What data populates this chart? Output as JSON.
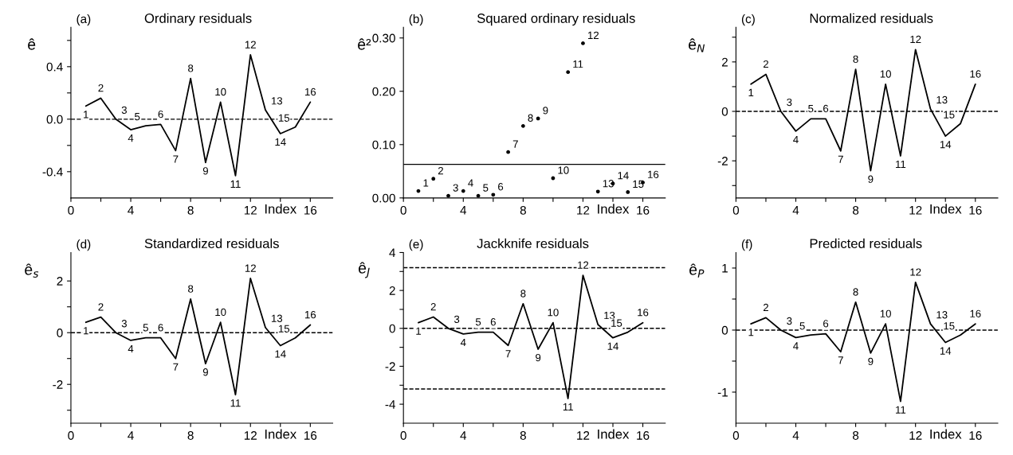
{
  "chart_data": [
    {
      "type": "line",
      "title": "Ordinary residuals",
      "xlabel": "Index",
      "ylabel": "ê",
      "x": [
        1,
        2,
        3,
        4,
        5,
        6,
        7,
        8,
        9,
        10,
        11,
        12,
        13,
        14,
        15,
        16
      ],
      "xlim": [
        0,
        17.5
      ],
      "xticks": [
        0,
        {
          "value": 2,
          "label": null
        },
        4,
        {
          "value": 6,
          "label": null
        },
        8,
        {
          "value": 10,
          "label": null
        },
        12,
        {
          "value": 14,
          "label": null
        },
        16
      ],
      "ylim": [
        -0.6,
        0.7
      ],
      "yticks": [
        {
          "value": -0.4,
          "label": "-0.4"
        },
        {
          "value": -0.2,
          "label": null
        },
        {
          "value": 0,
          "label": "0.0"
        },
        {
          "value": 0.2,
          "label": null
        },
        {
          "value": 0.4,
          "label": "0.4"
        },
        {
          "value": 0.6,
          "label": null
        }
      ],
      "marker": "none",
      "line_style": "solid",
      "grid": false,
      "ref_lines": [
        {
          "axis": "y",
          "value": 0,
          "line_style": "dashed"
        }
      ],
      "series": [
        {
          "color": "#000000",
          "values": [
            0.1,
            0.16,
            0.0,
            -0.08,
            -0.05,
            -0.04,
            -0.24,
            0.31,
            -0.33,
            0.13,
            -0.43,
            0.49,
            0.07,
            -0.11,
            -0.06,
            0.13
          ]
        }
      ],
      "annotations": [
        "(a)",
        {
          "text": "1",
          "x": 1,
          "y": 0.1
        },
        {
          "text": "2",
          "x": 2,
          "y": 0.16
        },
        {
          "text": "3",
          "x": 3,
          "y": 0.0
        },
        {
          "text": "4",
          "x": 4,
          "y": -0.08
        },
        {
          "text": "5",
          "x": 5,
          "y": -0.05
        },
        {
          "text": "6",
          "x": 6,
          "y": -0.04
        },
        {
          "text": "7",
          "x": 7,
          "y": -0.24
        },
        {
          "text": "8",
          "x": 8,
          "y": 0.31
        },
        {
          "text": "9",
          "x": 9,
          "y": -0.33
        },
        {
          "text": "10",
          "x": 10,
          "y": 0.13
        },
        {
          "text": "11",
          "x": 11,
          "y": -0.43
        },
        {
          "text": "12",
          "x": 12,
          "y": 0.49
        },
        {
          "text": "13",
          "x": 13,
          "y": 0.07
        },
        {
          "text": "14",
          "x": 14,
          "y": -0.11
        },
        {
          "text": "15",
          "x": 15,
          "y": -0.06
        },
        {
          "text": "16",
          "x": 16,
          "y": 0.13
        }
      ]
    },
    {
      "type": "scatter",
      "title": "Squared ordinary residuals",
      "xlabel": "Index",
      "ylabel": "ê²",
      "x": [
        1,
        2,
        3,
        4,
        5,
        6,
        7,
        8,
        9,
        10,
        11,
        12,
        13,
        14,
        15,
        16
      ],
      "xlim": [
        0,
        17.5
      ],
      "xticks": [
        0,
        {
          "value": 2,
          "label": null
        },
        4,
        {
          "value": 6,
          "label": null
        },
        8,
        {
          "value": 10,
          "label": null
        },
        12,
        {
          "value": 14,
          "label": null
        },
        16
      ],
      "ylim": [
        0,
        0.32
      ],
      "yticks": [
        {
          "value": 0,
          "label": "0.00"
        },
        {
          "value": 0.1,
          "label": "0.10"
        },
        {
          "value": 0.2,
          "label": "0.20"
        },
        {
          "value": 0.3,
          "label": "0.30"
        }
      ],
      "marker": "circle",
      "grid": false,
      "ref_lines": [
        {
          "axis": "y",
          "value": 0.063,
          "line_style": "solid"
        }
      ],
      "series": [
        {
          "color": "#000000",
          "values": [
            0.013,
            0.036,
            0.004,
            0.013,
            0.004,
            0.006,
            0.086,
            0.135,
            0.149,
            0.037,
            0.236,
            0.29,
            0.012,
            0.027,
            0.011,
            0.029
          ]
        }
      ],
      "annotations": [
        "(b)",
        {
          "text": "1",
          "x": 1,
          "y": 0.013
        },
        {
          "text": "2",
          "x": 2,
          "y": 0.036
        },
        {
          "text": "3",
          "x": 3,
          "y": 0.004
        },
        {
          "text": "4",
          "x": 4,
          "y": 0.013
        },
        {
          "text": "5",
          "x": 5,
          "y": 0.004
        },
        {
          "text": "6",
          "x": 6,
          "y": 0.006
        },
        {
          "text": "7",
          "x": 7,
          "y": 0.086
        },
        {
          "text": "8",
          "x": 8,
          "y": 0.135
        },
        {
          "text": "9",
          "x": 9,
          "y": 0.149
        },
        {
          "text": "10",
          "x": 10,
          "y": 0.037
        },
        {
          "text": "11",
          "x": 11,
          "y": 0.236
        },
        {
          "text": "12",
          "x": 12,
          "y": 0.29
        },
        {
          "text": "13",
          "x": 13,
          "y": 0.012
        },
        {
          "text": "14",
          "x": 14,
          "y": 0.027
        },
        {
          "text": "15",
          "x": 15,
          "y": 0.011
        },
        {
          "text": "16",
          "x": 16,
          "y": 0.029
        }
      ]
    },
    {
      "type": "line",
      "title": "Normalized residuals",
      "xlabel": "Index",
      "ylabel": "ê$_{N}$",
      "x": [
        1,
        2,
        3,
        4,
        5,
        6,
        7,
        8,
        9,
        10,
        11,
        12,
        13,
        14,
        15,
        16
      ],
      "xlim": [
        0,
        17.5
      ],
      "xticks": [
        0,
        {
          "value": 2,
          "label": null
        },
        4,
        {
          "value": 6,
          "label": null
        },
        8,
        {
          "value": 10,
          "label": null
        },
        12,
        {
          "value": 14,
          "label": null
        },
        16
      ],
      "ylim": [
        -3.5,
        3.4
      ],
      "yticks": [
        {
          "value": -3,
          "label": null
        },
        -2,
        {
          "value": -1,
          "label": null
        },
        0,
        {
          "value": 1,
          "label": null
        },
        2,
        {
          "value": 3,
          "label": null
        }
      ],
      "marker": "none",
      "line_style": "solid",
      "grid": false,
      "ref_lines": [
        {
          "axis": "y",
          "value": 0,
          "line_style": "dashed"
        }
      ],
      "series": [
        {
          "color": "#000000",
          "values": [
            1.1,
            1.5,
            0.0,
            -0.8,
            -0.3,
            -0.3,
            -1.6,
            1.7,
            -2.4,
            1.1,
            -1.8,
            2.5,
            0.1,
            -1.0,
            -0.5,
            1.1
          ]
        }
      ],
      "annotations": [
        "(c)",
        {
          "text": "1",
          "x": 1,
          "y": 1.1
        },
        {
          "text": "2",
          "x": 2,
          "y": 1.5
        },
        {
          "text": "3",
          "x": 3,
          "y": 0.0
        },
        {
          "text": "4",
          "x": 4,
          "y": -0.8
        },
        {
          "text": "5",
          "x": 5,
          "y": -0.3
        },
        {
          "text": "6",
          "x": 6,
          "y": -0.3
        },
        {
          "text": "7",
          "x": 7,
          "y": -1.6
        },
        {
          "text": "8",
          "x": 8,
          "y": 1.7
        },
        {
          "text": "9",
          "x": 9,
          "y": -2.4
        },
        {
          "text": "10",
          "x": 10,
          "y": 1.1
        },
        {
          "text": "11",
          "x": 11,
          "y": -1.8
        },
        {
          "text": "12",
          "x": 12,
          "y": 2.5
        },
        {
          "text": "13",
          "x": 13,
          "y": 0.1
        },
        {
          "text": "14",
          "x": 14,
          "y": -1.0
        },
        {
          "text": "15",
          "x": 15,
          "y": -0.5
        },
        {
          "text": "16",
          "x": 16,
          "y": 1.1
        }
      ]
    },
    {
      "type": "line",
      "title": "Standardized residuals",
      "xlabel": "Index",
      "ylabel": "ê$_{s}$",
      "x": [
        1,
        2,
        3,
        4,
        5,
        6,
        7,
        8,
        9,
        10,
        11,
        12,
        13,
        14,
        15,
        16
      ],
      "xlim": [
        0,
        17.5
      ],
      "xticks": [
        0,
        {
          "value": 2,
          "label": null
        },
        4,
        {
          "value": 6,
          "label": null
        },
        8,
        {
          "value": 10,
          "label": null
        },
        12,
        {
          "value": 14,
          "label": null
        },
        16
      ],
      "ylim": [
        -3.5,
        3.1
      ],
      "yticks": [
        {
          "value": -3,
          "label": null
        },
        -2,
        {
          "value": -1,
          "label": null
        },
        0,
        {
          "value": 1,
          "label": null
        },
        2
      ],
      "marker": "none",
      "line_style": "solid",
      "grid": false,
      "ref_lines": [
        {
          "axis": "y",
          "value": 0,
          "line_style": "dashed"
        }
      ],
      "series": [
        {
          "color": "#000000",
          "values": [
            0.4,
            0.6,
            0.0,
            -0.3,
            -0.2,
            -0.2,
            -1.0,
            1.3,
            -1.2,
            0.4,
            -2.4,
            2.1,
            0.2,
            -0.5,
            -0.2,
            0.3
          ]
        }
      ],
      "annotations": [
        "(d)",
        {
          "text": "1",
          "x": 1,
          "y": 0.4
        },
        {
          "text": "2",
          "x": 2,
          "y": 0.6
        },
        {
          "text": "3",
          "x": 3,
          "y": 0.0
        },
        {
          "text": "4",
          "x": 4,
          "y": -0.3
        },
        {
          "text": "5",
          "x": 5,
          "y": -0.2
        },
        {
          "text": "6",
          "x": 6,
          "y": -0.2
        },
        {
          "text": "7",
          "x": 7,
          "y": -1.0
        },
        {
          "text": "8",
          "x": 8,
          "y": 1.3
        },
        {
          "text": "9",
          "x": 9,
          "y": -1.2
        },
        {
          "text": "10",
          "x": 10,
          "y": 0.4
        },
        {
          "text": "11",
          "x": 11,
          "y": -2.4
        },
        {
          "text": "12",
          "x": 12,
          "y": 2.1
        },
        {
          "text": "13",
          "x": 13,
          "y": 0.2
        },
        {
          "text": "14",
          "x": 14,
          "y": -0.5
        },
        {
          "text": "15",
          "x": 15,
          "y": -0.2
        },
        {
          "text": "16",
          "x": 16,
          "y": 0.3
        }
      ]
    },
    {
      "type": "line",
      "title": "Jackknife residuals",
      "xlabel": "Index",
      "ylabel": "ê$_{J}$",
      "x": [
        1,
        2,
        3,
        4,
        5,
        6,
        7,
        8,
        9,
        10,
        11,
        12,
        13,
        14,
        15,
        16
      ],
      "xlim": [
        0,
        17.5
      ],
      "xticks": [
        0,
        {
          "value": 2,
          "label": null
        },
        4,
        {
          "value": 6,
          "label": null
        },
        8,
        {
          "value": 10,
          "label": null
        },
        12,
        {
          "value": 14,
          "label": null
        },
        16
      ],
      "ylim": [
        -5,
        4
      ],
      "yticks": [
        -4,
        {
          "value": -3,
          "label": null
        },
        -2,
        {
          "value": -1,
          "label": null
        },
        0,
        {
          "value": 1,
          "label": null
        },
        2,
        {
          "value": 3,
          "label": null
        },
        4
      ],
      "marker": "none",
      "line_style": "solid",
      "grid": false,
      "ref_lines": [
        {
          "axis": "y",
          "value": 0,
          "line_style": "dashed"
        },
        {
          "axis": "y",
          "value": 3.2,
          "line_style": "dashed"
        },
        {
          "axis": "y",
          "value": -3.2,
          "line_style": "dashed"
        }
      ],
      "series": [
        {
          "color": "#000000",
          "values": [
            0.3,
            0.6,
            0.0,
            -0.3,
            -0.2,
            -0.2,
            -0.9,
            1.3,
            -1.1,
            0.3,
            -3.7,
            2.8,
            0.2,
            -0.5,
            -0.2,
            0.3
          ]
        }
      ],
      "annotations": [
        "(e)",
        {
          "text": "1",
          "x": 1,
          "y": 0.3
        },
        {
          "text": "2",
          "x": 2,
          "y": 0.6
        },
        {
          "text": "3",
          "x": 3,
          "y": 0.0
        },
        {
          "text": "4",
          "x": 4,
          "y": -0.3
        },
        {
          "text": "5",
          "x": 5,
          "y": -0.2
        },
        {
          "text": "6",
          "x": 6,
          "y": -0.2
        },
        {
          "text": "7",
          "x": 7,
          "y": -0.9
        },
        {
          "text": "8",
          "x": 8,
          "y": 1.3
        },
        {
          "text": "9",
          "x": 9,
          "y": -1.1
        },
        {
          "text": "10",
          "x": 10,
          "y": 0.3
        },
        {
          "text": "11",
          "x": 11,
          "y": -3.7
        },
        {
          "text": "12",
          "x": 12,
          "y": 2.8
        },
        {
          "text": "13",
          "x": 13,
          "y": 0.2
        },
        {
          "text": "14",
          "x": 14,
          "y": -0.5
        },
        {
          "text": "15",
          "x": 15,
          "y": -0.2
        },
        {
          "text": "16",
          "x": 16,
          "y": 0.3
        }
      ]
    },
    {
      "type": "line",
      "title": "Predicted residuals",
      "xlabel": "Index",
      "ylabel": "ê$_{P}$",
      "x": [
        1,
        2,
        3,
        4,
        5,
        6,
        7,
        8,
        9,
        10,
        11,
        12,
        13,
        14,
        15,
        16
      ],
      "xlim": [
        0,
        17.5
      ],
      "xticks": [
        0,
        {
          "value": 2,
          "label": null
        },
        4,
        {
          "value": 6,
          "label": null
        },
        8,
        {
          "value": 10,
          "label": null
        },
        12,
        {
          "value": 14,
          "label": null
        },
        16
      ],
      "ylim": [
        -1.5,
        1.25
      ],
      "yticks": [
        -1,
        {
          "value": -0.5,
          "label": null
        },
        0,
        {
          "value": 0.5,
          "label": null
        },
        1
      ],
      "marker": "none",
      "line_style": "solid",
      "grid": false,
      "ref_lines": [
        {
          "axis": "y",
          "value": 0,
          "line_style": "dashed"
        }
      ],
      "series": [
        {
          "color": "#000000",
          "values": [
            0.1,
            0.2,
            0.0,
            -0.12,
            -0.08,
            -0.06,
            -0.35,
            0.45,
            -0.37,
            0.1,
            -1.15,
            0.77,
            0.1,
            -0.2,
            -0.08,
            0.1
          ]
        }
      ],
      "annotations": [
        "(f)",
        {
          "text": "1",
          "x": 1,
          "y": 0.1
        },
        {
          "text": "2",
          "x": 2,
          "y": 0.2
        },
        {
          "text": "3",
          "x": 3,
          "y": 0.0
        },
        {
          "text": "4",
          "x": 4,
          "y": -0.12
        },
        {
          "text": "5",
          "x": 5,
          "y": -0.08
        },
        {
          "text": "6",
          "x": 6,
          "y": -0.06
        },
        {
          "text": "7",
          "x": 7,
          "y": -0.35
        },
        {
          "text": "8",
          "x": 8,
          "y": 0.45
        },
        {
          "text": "9",
          "x": 9,
          "y": -0.37
        },
        {
          "text": "10",
          "x": 10,
          "y": 0.1
        },
        {
          "text": "11",
          "x": 11,
          "y": -1.15
        },
        {
          "text": "12",
          "x": 12,
          "y": 0.77
        },
        {
          "text": "13",
          "x": 13,
          "y": 0.1
        },
        {
          "text": "14",
          "x": 14,
          "y": -0.2
        },
        {
          "text": "15",
          "x": 15,
          "y": -0.08
        },
        {
          "text": "16",
          "x": 16,
          "y": 0.1
        }
      ]
    }
  ]
}
